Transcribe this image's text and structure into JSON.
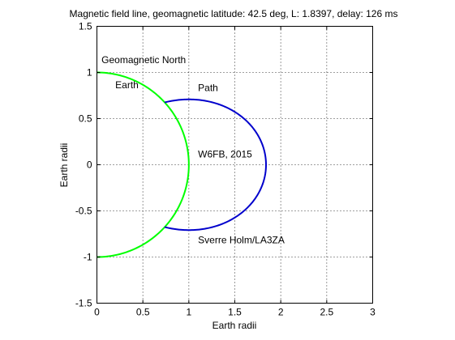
{
  "chart_data": {
    "type": "line",
    "title": "Magnetic field line, geomagnetic latitude: 42.5 deg, L: 1.8397, delay: 126 ms",
    "xlabel": "Earth radii",
    "ylabel": "Earth radii",
    "xlim": [
      0,
      3
    ],
    "ylim": [
      -1.5,
      1.5
    ],
    "x_ticks": [
      "0",
      "0.5",
      "1",
      "1.5",
      "2",
      "2.5",
      "3"
    ],
    "y_ticks": [
      "1.5",
      "1",
      "0.5",
      "0",
      "-0.5",
      "-1",
      "-1.5"
    ],
    "grid": true,
    "series": [
      {
        "name": "Earth",
        "color": "#00ff00",
        "curve": "unit-circle-right-half",
        "radius": 1
      },
      {
        "name": "Path",
        "color": "#0000cc",
        "curve": "dipole-field-line",
        "L": 1.8397,
        "latitude_deg": 42.5
      }
    ],
    "annotations": [
      {
        "text": "Geomagnetic North",
        "x": 0.05,
        "y": 1.1
      },
      {
        "text": "Earth",
        "x": 0.2,
        "y": 0.83
      },
      {
        "text": "Path",
        "x": 1.1,
        "y": 0.8
      },
      {
        "text": "W6FB, 2015",
        "x": 1.1,
        "y": 0.08
      },
      {
        "text": "Sverre Holm/LA3ZA",
        "x": 1.1,
        "y": -0.85
      }
    ]
  }
}
